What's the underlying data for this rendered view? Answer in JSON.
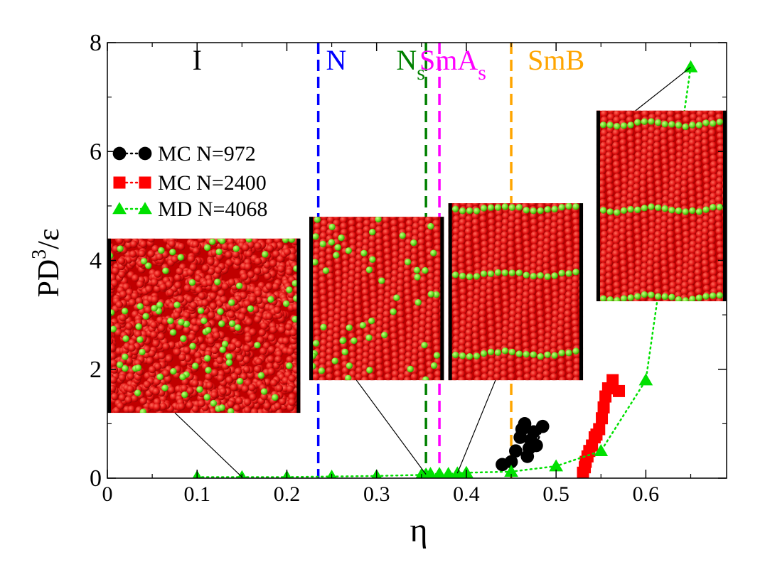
{
  "chart_data": {
    "type": "scatter",
    "title": "",
    "xlabel": "η",
    "ylabel_main": "PD",
    "ylabel_sup": "3",
    "ylabel_tail": "/ε",
    "xlim": [
      0,
      0.69
    ],
    "ylim": [
      0,
      8
    ],
    "grid": false,
    "x_ticks": [
      0,
      0.1,
      0.2,
      0.3,
      0.4,
      0.5,
      0.6
    ],
    "x_tick_labels": [
      "0",
      "0.1",
      "0.2",
      "0.3",
      "0.4",
      "0.5",
      "0.6"
    ],
    "y_ticks": [
      0,
      2,
      4,
      6,
      8
    ],
    "y_tick_labels": [
      "0",
      "2",
      "4",
      "6",
      "8"
    ],
    "legend_position": "left",
    "series": [
      {
        "name": "MC N=972",
        "marker": "circle",
        "color": "#000000",
        "points": [
          [
            0.44,
            0.25
          ],
          [
            0.45,
            0.3
          ],
          [
            0.455,
            0.5
          ],
          [
            0.46,
            0.75
          ],
          [
            0.462,
            0.9
          ],
          [
            0.465,
            1.0
          ],
          [
            0.468,
            0.4
          ],
          [
            0.47,
            0.55
          ],
          [
            0.472,
            0.7
          ],
          [
            0.475,
            0.85
          ],
          [
            0.478,
            0.6
          ],
          [
            0.485,
            0.95
          ]
        ]
      },
      {
        "name": "MC N=2400",
        "marker": "square",
        "color": "#ff0000",
        "points": [
          [
            0.57,
            1.6
          ],
          [
            0.563,
            1.8
          ],
          [
            0.558,
            1.65
          ],
          [
            0.555,
            1.5
          ],
          [
            0.553,
            1.3
          ],
          [
            0.551,
            1.1
          ],
          [
            0.548,
            0.9
          ],
          [
            0.545,
            0.8
          ],
          [
            0.543,
            0.75
          ],
          [
            0.54,
            0.6
          ],
          [
            0.537,
            0.5
          ],
          [
            0.535,
            0.4
          ],
          [
            0.533,
            0.3
          ],
          [
            0.532,
            0.2
          ],
          [
            0.53,
            0.1
          ]
        ]
      },
      {
        "name": "MD N=4068",
        "marker": "triangle",
        "color": "#00e000",
        "points": [
          [
            0.1,
            0.02
          ],
          [
            0.15,
            0.02
          ],
          [
            0.2,
            0.02
          ],
          [
            0.25,
            0.03
          ],
          [
            0.3,
            0.04
          ],
          [
            0.35,
            0.06
          ],
          [
            0.355,
            0.07
          ],
          [
            0.36,
            0.08
          ],
          [
            0.37,
            0.08
          ],
          [
            0.38,
            0.08
          ],
          [
            0.39,
            0.09
          ],
          [
            0.4,
            0.1
          ],
          [
            0.45,
            0.12
          ],
          [
            0.5,
            0.22
          ],
          [
            0.55,
            0.5
          ],
          [
            0.6,
            1.8
          ],
          [
            0.65,
            7.55
          ]
        ]
      }
    ],
    "phase_boundaries": [
      {
        "x": 0.235,
        "color": "#0000ff"
      },
      {
        "x": 0.355,
        "color": "#008000"
      },
      {
        "x": 0.37,
        "color": "#ff00ff"
      },
      {
        "x": 0.45,
        "color": "#ffa500"
      }
    ],
    "phase_labels": [
      {
        "text": "I",
        "sub": "",
        "x": 0.1,
        "color": "#000000"
      },
      {
        "text": "N",
        "sub": "",
        "x": 0.255,
        "color": "#0000ff"
      },
      {
        "text": "N",
        "sub": "s",
        "x": 0.338,
        "color": "#008000"
      },
      {
        "text": "SmA",
        "sub": "s",
        "x": 0.385,
        "color": "#ff00ff"
      },
      {
        "text": "SmB",
        "sub": "",
        "x": 0.5,
        "color": "#ffa500"
      }
    ],
    "insets": [
      {
        "name": "isotropic",
        "x0": 0.0,
        "x1": 0.215,
        "y0": 1.2,
        "y1": 4.4,
        "pattern": "random",
        "anchor": [
          0.15,
          0.02
        ]
      },
      {
        "name": "nematic",
        "x0": 0.225,
        "x1": 0.375,
        "y0": 1.8,
        "y1": 4.8,
        "pattern": "nematic",
        "anchor": [
          0.355,
          0.07
        ]
      },
      {
        "name": "smectic-a",
        "x0": 0.38,
        "x1": 0.53,
        "y0": 1.8,
        "y1": 5.05,
        "pattern": "smectic3",
        "anchor": [
          0.39,
          0.09
        ]
      },
      {
        "name": "smectic-b",
        "x0": 0.545,
        "x1": 0.69,
        "y0": 3.25,
        "y1": 6.75,
        "pattern": "smectic2",
        "anchor": [
          0.65,
          7.55
        ]
      }
    ]
  }
}
